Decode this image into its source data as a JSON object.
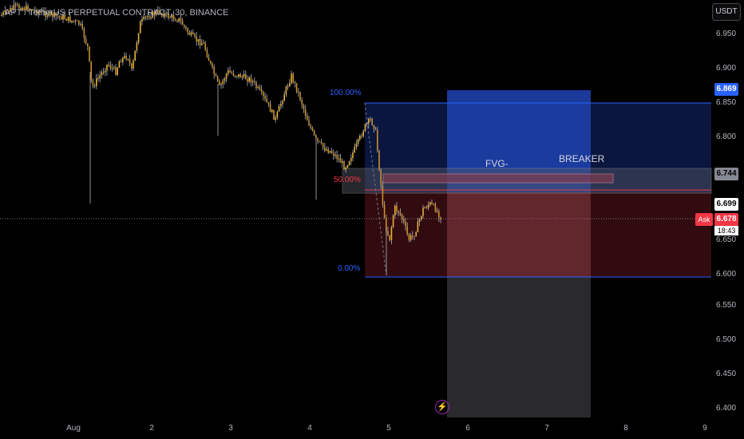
{
  "header": {
    "title": "APT / TetherUS PERPETUAL CONTRACT, 30, BINANCE"
  },
  "currency_button": "USDT",
  "price_axis": [
    "6.950",
    "6.900",
    "6.850",
    "6.800",
    "6.750",
    "6.700",
    "6.650",
    "6.600",
    "6.550",
    "6.500",
    "6.450",
    "6.400"
  ],
  "time_axis": [
    "Aug",
    "2",
    "3",
    "4",
    "5",
    "6",
    "7",
    "8",
    "9"
  ],
  "badges": {
    "target": "6.869",
    "fvg": "6.744",
    "level": "6.699",
    "ask_label": "Ask",
    "ask_price": "6.678",
    "countdown": "18:43"
  },
  "fib_levels": {
    "top": "100.00%",
    "mid": "50.00%",
    "bottom": "0.00%"
  },
  "annotations": {
    "fvg": "FVG-",
    "breaker": "BREAKER"
  },
  "colors": {
    "background": "#000000",
    "candle": "#d9a22a",
    "wick": "#b2b5be",
    "target_zone": "#2962ff",
    "stop_zone": "#f23645",
    "fib_line": "#2962ff"
  },
  "icons": {
    "alert": "lightning-icon"
  }
}
